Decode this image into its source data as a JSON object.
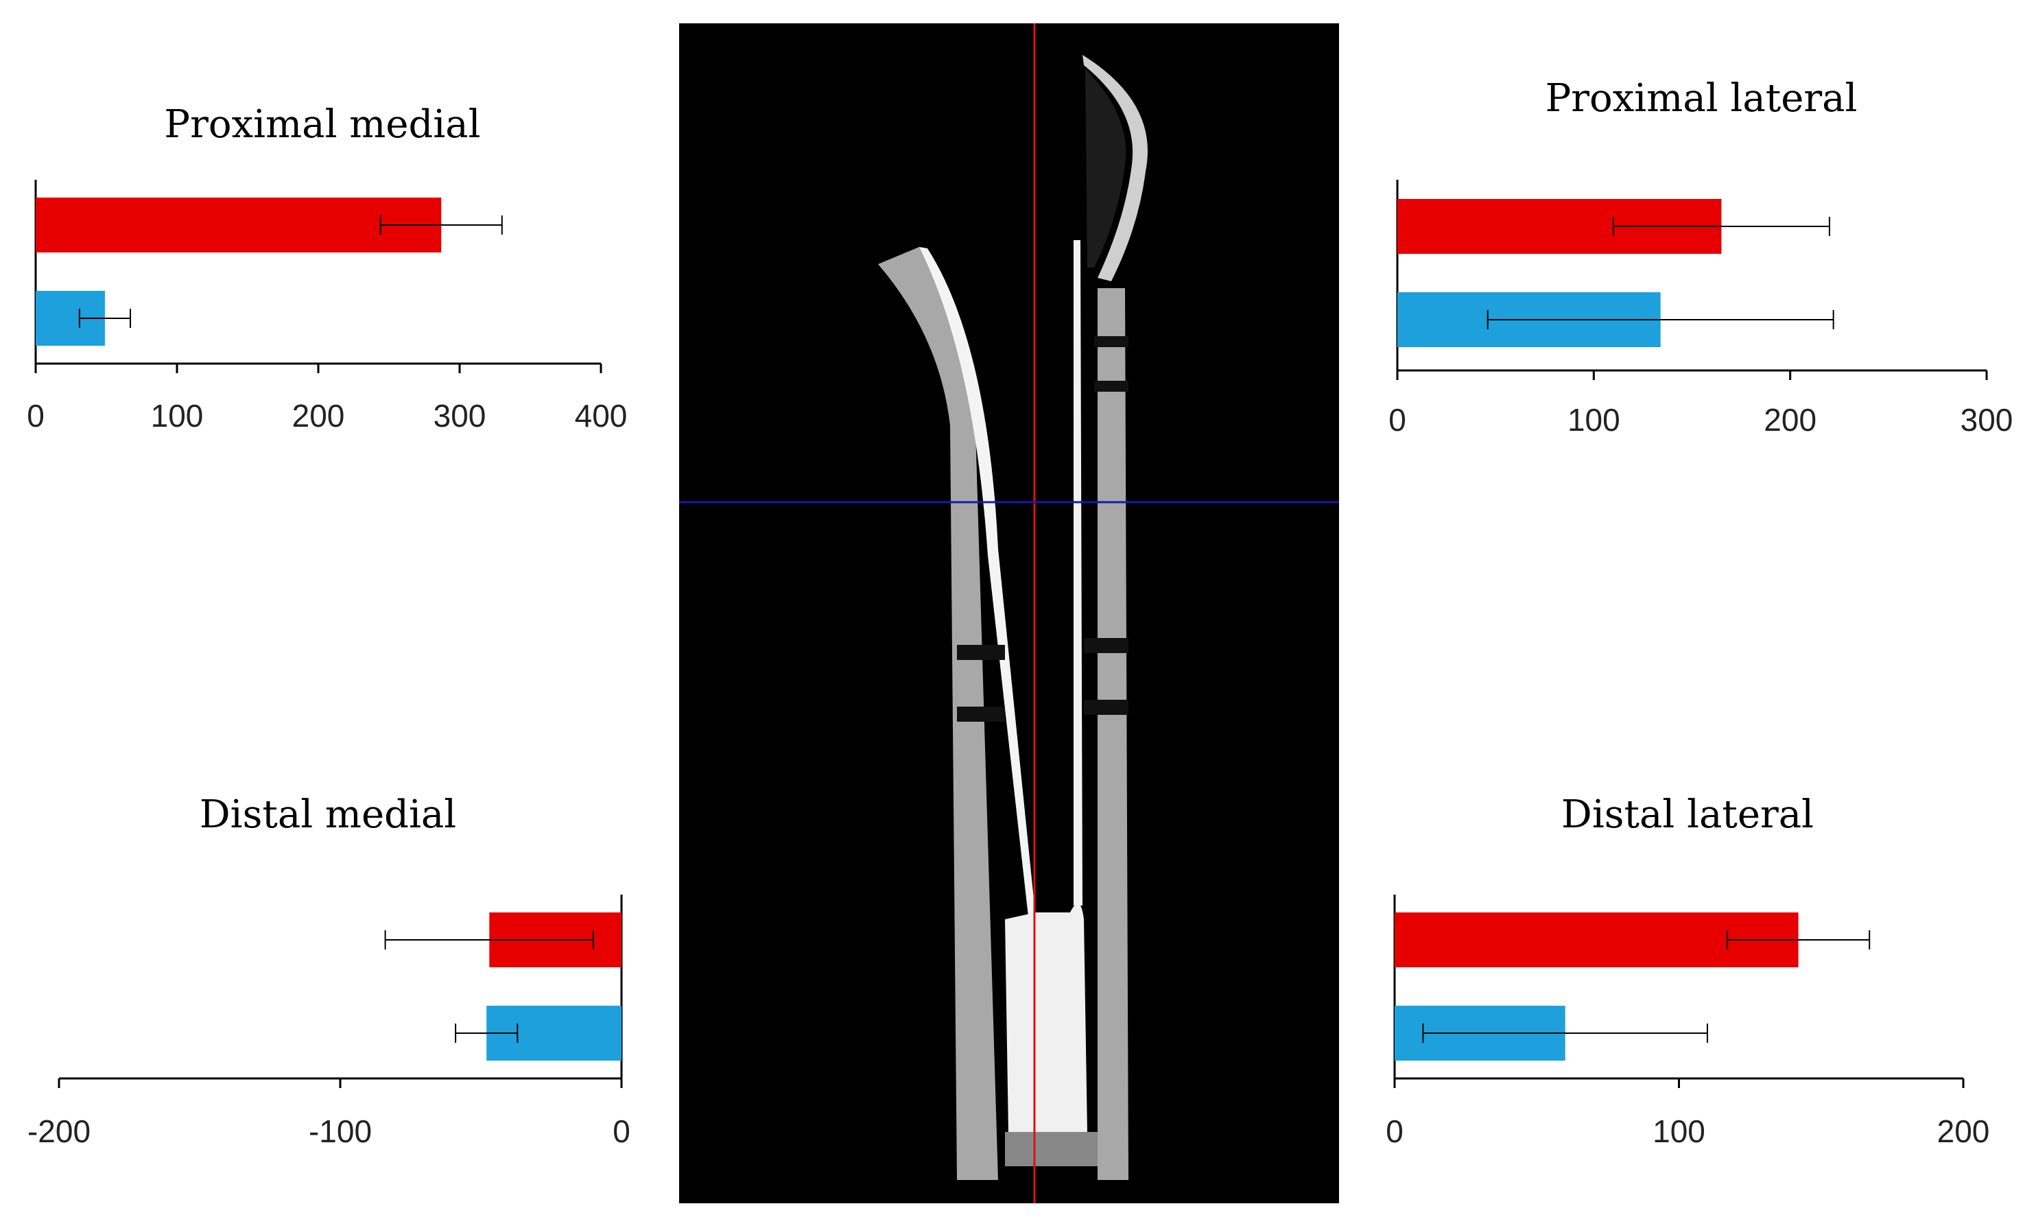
{
  "figure": {
    "image_panel": {
      "description_icon": "ct-scan-image",
      "background": "#000000",
      "vertical_line_color": "#e01010",
      "horizontal_line_color": "#1a1aaa"
    }
  },
  "colors": {
    "series_red": "#e60000",
    "series_blue": "#1ea0dc",
    "axis": "#000000",
    "error_bar": "#000000"
  },
  "chart_data": [
    {
      "type": "bar",
      "orientation": "horizontal",
      "title": "Proximal medial",
      "xlabel": "",
      "ylabel": "",
      "xlim": [
        0,
        400
      ],
      "ticks": [
        0,
        100,
        200,
        300,
        400
      ],
      "series": [
        {
          "values": [
            287
          ],
          "error": [
            43
          ]
        },
        {
          "values": [
            49
          ],
          "error": [
            18
          ]
        }
      ]
    },
    {
      "type": "bar",
      "orientation": "horizontal",
      "title": "Proximal lateral",
      "xlabel": "",
      "ylabel": "",
      "xlim": [
        0,
        300
      ],
      "ticks": [
        0,
        100,
        200,
        300
      ],
      "series": [
        {
          "values": [
            165
          ],
          "error": [
            55
          ]
        },
        {
          "values": [
            134
          ],
          "error": [
            88
          ]
        }
      ]
    },
    {
      "type": "bar",
      "orientation": "horizontal",
      "title": "Distal medial",
      "xlabel": "",
      "ylabel": "",
      "xlim": [
        -200,
        0
      ],
      "ticks": [
        -200,
        -100,
        0
      ],
      "series": [
        {
          "values": [
            -47
          ],
          "error": [
            37
          ]
        },
        {
          "values": [
            -48
          ],
          "error": [
            11
          ]
        }
      ]
    },
    {
      "type": "bar",
      "orientation": "horizontal",
      "title": "Distal lateral",
      "xlabel": "",
      "ylabel": "",
      "xlim": [
        0,
        200
      ],
      "ticks": [
        0,
        100,
        200
      ],
      "series": [
        {
          "values": [
            142
          ],
          "error": [
            25
          ]
        },
        {
          "values": [
            60
          ],
          "error": [
            50
          ]
        }
      ]
    }
  ]
}
